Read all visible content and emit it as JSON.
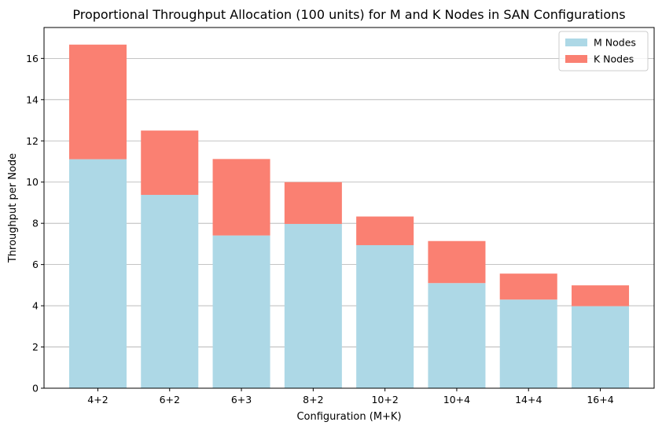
{
  "chart_data": {
    "type": "bar",
    "stacked": true,
    "title": "Proportional Throughput Allocation (100 units) for M and K Nodes in SAN Configurations",
    "xlabel": "Configuration (M+K)",
    "ylabel": "Throughput per Node",
    "categories": [
      "4+2",
      "6+2",
      "6+3",
      "8+2",
      "10+2",
      "10+4",
      "14+4",
      "16+4"
    ],
    "series": [
      {
        "name": "M Nodes",
        "color": "#add8e6",
        "values": [
          11.11,
          9.38,
          7.41,
          7.97,
          6.94,
          5.1,
          4.3,
          3.98
        ]
      },
      {
        "name": "K Nodes",
        "color": "#fa8072",
        "values": [
          5.56,
          3.12,
          3.71,
          2.03,
          1.39,
          2.04,
          1.26,
          1.01
        ]
      }
    ],
    "ylim": [
      0,
      17.5
    ],
    "yticks": [
      0,
      2,
      4,
      6,
      8,
      10,
      12,
      14,
      16
    ],
    "grid": "y",
    "legend_position": "top-right"
  }
}
